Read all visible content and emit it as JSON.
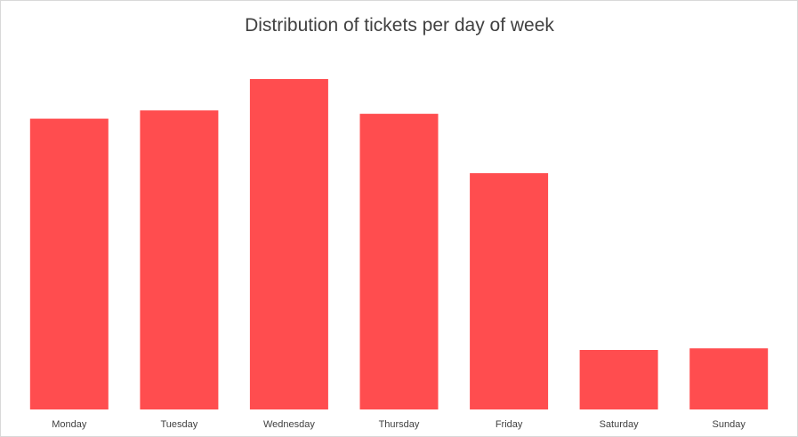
{
  "chart_data": {
    "type": "bar",
    "title": "Distribution of tickets per day of week",
    "xlabel": "",
    "ylabel": "",
    "categories": [
      "Monday",
      "Tuesday",
      "Wednesday",
      "Thursday",
      "Friday",
      "Saturday",
      "Sunday"
    ],
    "values": [
      88,
      90.5,
      100,
      89.5,
      71.5,
      18,
      18.5
    ],
    "ylim": [
      0,
      100
    ],
    "grid": false,
    "legend": "none",
    "colors": {
      "bar": "#ff4d4f",
      "text": "#404040",
      "border": "#d9d9d9"
    }
  }
}
